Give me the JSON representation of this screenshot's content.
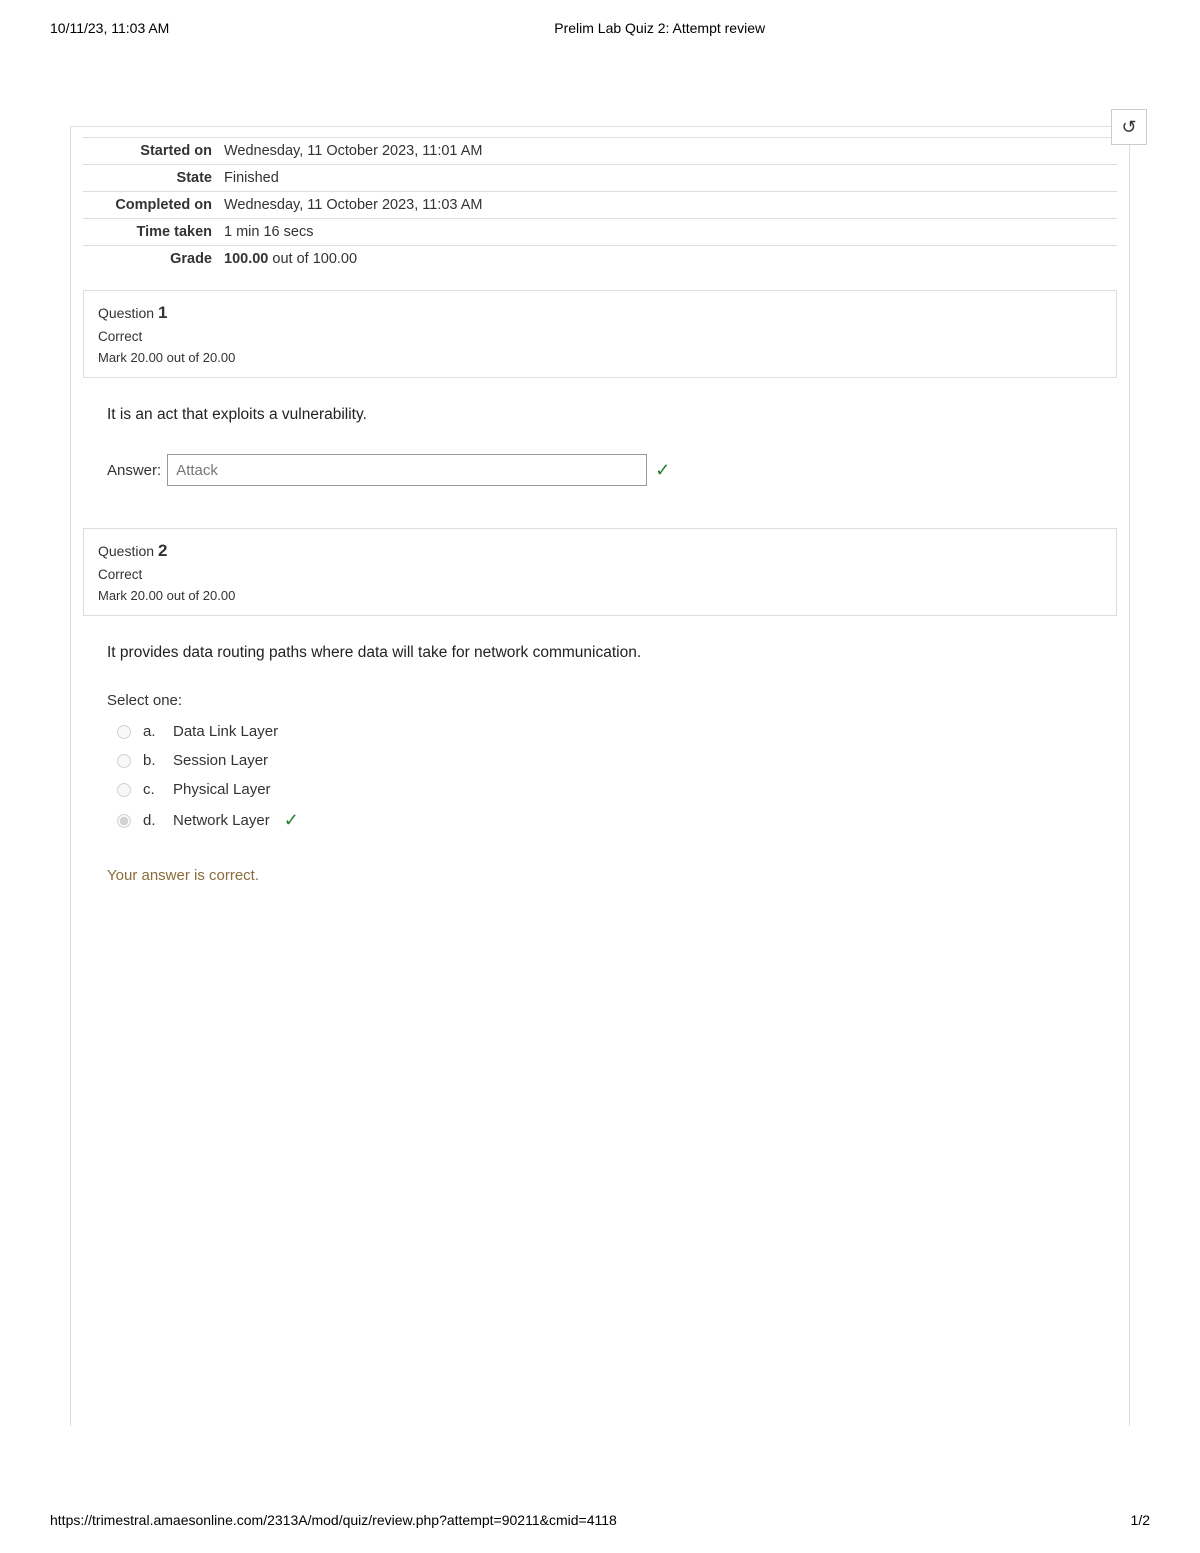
{
  "print": {
    "datetime": "10/11/23, 11:03 AM",
    "title": "Prelim Lab Quiz 2: Attempt review",
    "url": "https://trimestral.amaesonline.com/2313A/mod/quiz/review.php?attempt=90211&cmid=4118",
    "page": "1/2"
  },
  "history_icon": "↺",
  "summary": {
    "rows": [
      {
        "label": "Started on",
        "value": "Wednesday, 11 October 2023, 11:01 AM"
      },
      {
        "label": "State",
        "value": "Finished"
      },
      {
        "label": "Completed on",
        "value": "Wednesday, 11 October 2023, 11:03 AM"
      },
      {
        "label": "Time taken",
        "value": "1 min 16 secs"
      }
    ],
    "grade_label": "Grade",
    "grade_bold": "100.00",
    "grade_rest": " out of 100.00"
  },
  "q1": {
    "heading_prefix": "Question ",
    "number": "1",
    "status": "Correct",
    "mark": "Mark 20.00 out of 20.00",
    "text": "It is an act that exploits a vulnerability.",
    "answer_label": "Answer:",
    "answer_value": "Attack"
  },
  "q2": {
    "heading_prefix": "Question ",
    "number": "2",
    "status": "Correct",
    "mark": "Mark 20.00 out of 20.00",
    "text": "It provides data routing paths where data will take for network communication.",
    "select_one": "Select one:",
    "options": [
      {
        "letter": "a.",
        "label": "Data Link Layer",
        "checked": false,
        "correct": false
      },
      {
        "letter": "b.",
        "label": "Session Layer",
        "checked": false,
        "correct": false
      },
      {
        "letter": "c.",
        "label": "Physical Layer",
        "checked": false,
        "correct": false
      },
      {
        "letter": "d.",
        "label": "Network Layer",
        "checked": true,
        "correct": true
      }
    ],
    "feedback": "Your answer is correct."
  },
  "check_glyph": "✓"
}
